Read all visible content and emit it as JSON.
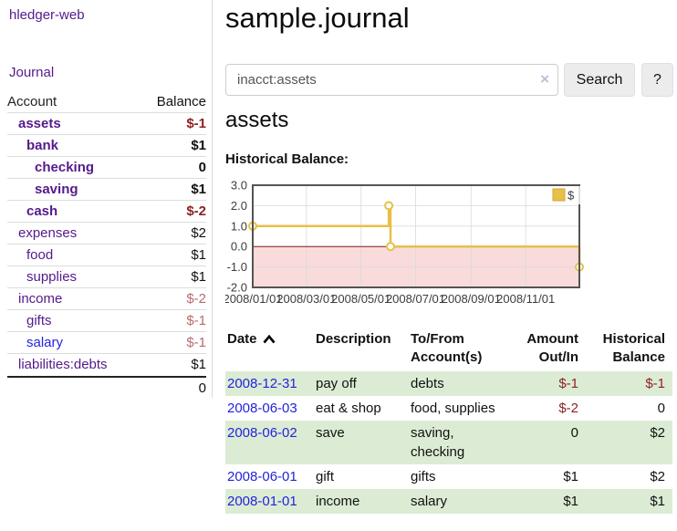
{
  "colors": {
    "link_purple": "#551a8b",
    "link_blue": "#2323dd",
    "negative_strong": "#8e2222",
    "negative_soft": "#b56c6c",
    "row_stripe_green": "#dcecd4",
    "series_gold": "#e7c04a",
    "negative_region_pink": "#fadbdb",
    "zero_line_red": "#8b1a1a",
    "plot_border_gray": "#545454"
  },
  "sidebar": {
    "brand": "hledger-web",
    "journal_label": "Journal",
    "accounts": {
      "header_account": "Account",
      "header_balance": "Balance",
      "rows": [
        {
          "name": "assets",
          "level": 0,
          "bold": true,
          "balance": "$-1",
          "neg": "strong"
        },
        {
          "name": "bank",
          "level": 1,
          "bold": true,
          "balance": "$1"
        },
        {
          "name": "checking",
          "level": 2,
          "bold": true,
          "balance": "0"
        },
        {
          "name": "saving",
          "level": 2,
          "bold": true,
          "balance": "$1"
        },
        {
          "name": "cash",
          "level": 1,
          "bold": true,
          "balance": "$-2",
          "neg": "strong"
        },
        {
          "name": "expenses",
          "level": 0,
          "bold": false,
          "balance": "$2"
        },
        {
          "name": "food",
          "level": 1,
          "bold": false,
          "balance": "$1"
        },
        {
          "name": "supplies",
          "level": 1,
          "bold": false,
          "balance": "$1"
        },
        {
          "name": "income",
          "level": 0,
          "bold": false,
          "balance": "$-2",
          "neg": "soft"
        },
        {
          "name": "gifts",
          "level": 1,
          "bold": false,
          "balance": "$-1",
          "neg": "soft"
        },
        {
          "name": "salary",
          "level": 1,
          "bold": false,
          "balance": "$-1",
          "neg": "soft",
          "link": "blue"
        },
        {
          "name": "liabilities:debts",
          "level": 0,
          "bold": false,
          "balance": "$1"
        }
      ],
      "total": "0"
    }
  },
  "main": {
    "title": "sample.journal",
    "search": {
      "value": "inacct:assets",
      "clear_icon": "×",
      "button_label": "Search",
      "help_label": "?"
    },
    "account_heading": "assets",
    "chart_label": "Historical Balance:",
    "register": {
      "headers": [
        "Date",
        "Description",
        "To/From Account(s)",
        "Amount Out/In",
        "Historical Balance"
      ],
      "sort_icon": "chevron-up",
      "rows": [
        {
          "date": "2008-12-31",
          "description": "pay off",
          "accounts": "debts",
          "amount": "$-1",
          "amount_neg": true,
          "balance": "$-1",
          "balance_neg": true
        },
        {
          "date": "2008-06-03",
          "description": "eat & shop",
          "accounts": "food, supplies",
          "amount": "$-2",
          "amount_neg": true,
          "balance": "0",
          "balance_neg": false
        },
        {
          "date": "2008-06-02",
          "description": "save",
          "accounts": "saving, checking",
          "amount": "0",
          "amount_neg": false,
          "balance": "$2",
          "balance_neg": false
        },
        {
          "date": "2008-06-01",
          "description": "gift",
          "accounts": "gifts",
          "amount": "$1",
          "amount_neg": false,
          "balance": "$2",
          "balance_neg": false
        },
        {
          "date": "2008-01-01",
          "description": "income",
          "accounts": "salary",
          "amount": "$1",
          "amount_neg": false,
          "balance": "$1",
          "balance_neg": false
        }
      ]
    }
  },
  "chart_data": {
    "type": "line",
    "title": "Historical Balance:",
    "step": true,
    "series": [
      {
        "name": "$",
        "color": "#e7c04a",
        "points": [
          [
            "2008-01-01",
            1
          ],
          [
            "2008-06-01",
            2
          ],
          [
            "2008-06-03",
            0
          ],
          [
            "2008-12-31",
            -1
          ]
        ]
      }
    ],
    "xlim": [
      "2008-01-01",
      "2008-12-31"
    ],
    "ylim": [
      -2,
      3
    ],
    "x_ticks": [
      "2008/01/01",
      "2008/03/01",
      "2008/05/01",
      "2008/07/01",
      "2008/09/01",
      "2008/11/01"
    ],
    "y_ticks": [
      "3.0",
      "2.0",
      "1.0",
      "0.0",
      "-1.0",
      "-2.0"
    ],
    "grid": true,
    "legend": [
      "$"
    ],
    "legend_position": "top-right",
    "negative_fill": "#fadbdb",
    "zero_line_color": "#8b1a1a"
  }
}
